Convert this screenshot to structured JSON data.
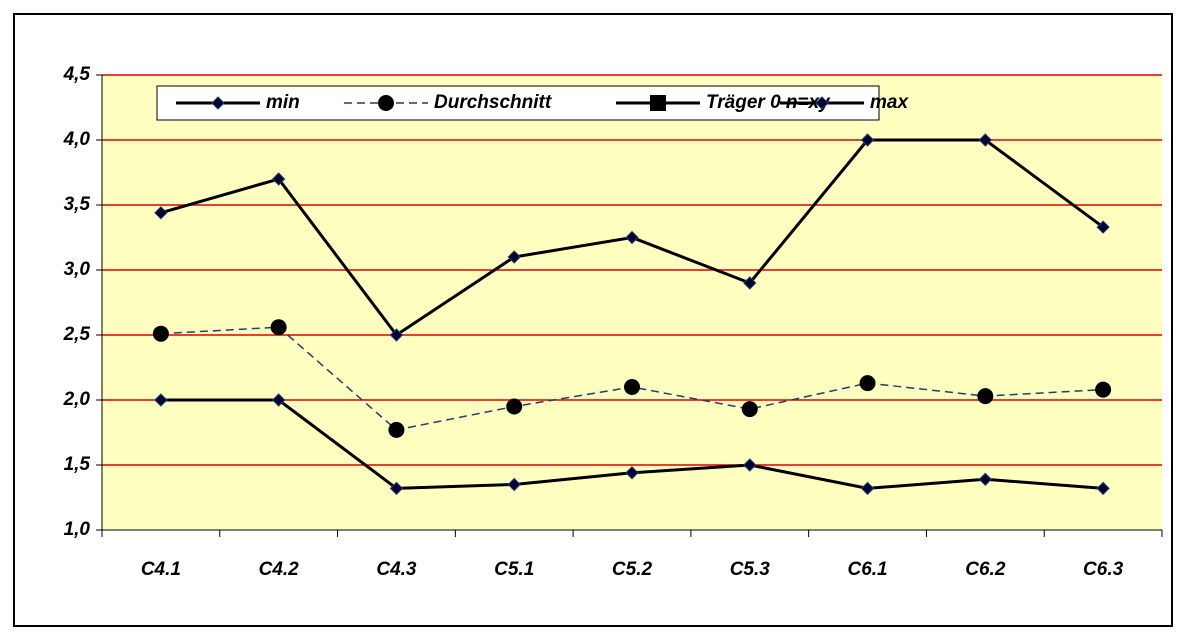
{
  "chart_data": {
    "type": "line",
    "categories": [
      "C4.1",
      "C4.2",
      "C4.3",
      "C5.1",
      "C5.2",
      "C5.3",
      "C6.1",
      "C6.2",
      "C6.3"
    ],
    "series": [
      {
        "name": "min",
        "color": "#000000",
        "marker": "diamond",
        "marker_color": "#000033",
        "line_style": "solid",
        "values": [
          2.0,
          2.0,
          1.32,
          1.35,
          1.44,
          1.5,
          1.32,
          1.39,
          1.32
        ]
      },
      {
        "name": "Durchschnitt",
        "color": "#1f3f6f",
        "marker": "circle",
        "marker_color": "#000000",
        "line_style": "dashed",
        "values": [
          2.51,
          2.56,
          1.77,
          1.95,
          2.1,
          1.93,
          2.13,
          2.03,
          2.08
        ]
      },
      {
        "name": "Träger 0 n=xy",
        "color": "#000000",
        "marker": "square",
        "marker_color": "#000000",
        "line_style": "solid",
        "values": [
          null,
          null,
          null,
          null,
          null,
          null,
          null,
          null,
          null
        ]
      },
      {
        "name": "max",
        "color": "#000000",
        "marker": "diamond",
        "marker_color": "#000033",
        "line_style": "solid",
        "values": [
          3.44,
          3.7,
          2.5,
          3.1,
          3.25,
          2.9,
          4.0,
          4.0,
          3.33
        ]
      }
    ],
    "ylim": [
      1.0,
      4.5
    ],
    "yticks": [
      {
        "value": 1.0,
        "label": "1,0"
      },
      {
        "value": 1.5,
        "label": "1,5"
      },
      {
        "value": 2.0,
        "label": "2,0"
      },
      {
        "value": 2.5,
        "label": "2,5"
      },
      {
        "value": 3.0,
        "label": "3,0"
      },
      {
        "value": 3.5,
        "label": "3,5"
      },
      {
        "value": 4.0,
        "label": "4,0"
      },
      {
        "value": 4.5,
        "label": "4,5"
      }
    ],
    "grid": true,
    "grid_color": "#e00000",
    "plot_background": "#ffffc0",
    "legend": "top"
  }
}
